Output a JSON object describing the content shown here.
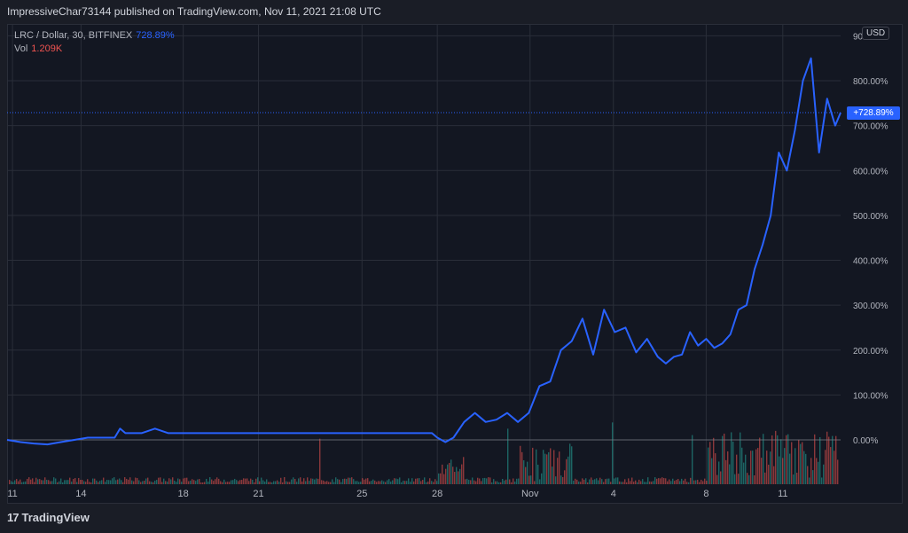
{
  "header": {
    "published": "ImpressiveChar73144 published on TradingView.com, Nov 11, 2021 21:08 UTC"
  },
  "legend": {
    "symbol": "LRC / Dollar, 30, BITFINEX",
    "value": "728.89%",
    "vol_label": "Vol",
    "vol_value": "1.209K"
  },
  "currency_button": "USD",
  "price_tag": "+728.89%",
  "brand": {
    "logo": "17",
    "name": "TradingView"
  },
  "colors": {
    "line": "#2962ff",
    "vol_up": "#26a69a",
    "vol_down": "#ef5350",
    "bg": "#131722",
    "grid": "#2a2e39"
  },
  "chart_data": {
    "type": "line",
    "title": "LRC / Dollar, 30, BITFINEX",
    "y_unit": "%",
    "ylim": [
      -40,
      900
    ],
    "yticks": [
      "0.00%",
      "100.00%",
      "200.00%",
      "300.00%",
      "400.00%",
      "500.00%",
      "600.00%",
      "700.00%",
      "800.00%",
      "90"
    ],
    "xticks": [
      "11",
      "14",
      "18",
      "21",
      "25",
      "28",
      "Nov",
      "4",
      "8",
      "11"
    ],
    "grid": true,
    "last_value": 728.89,
    "series": [
      {
        "x": [
          0,
          0.5,
          1,
          1.5,
          2,
          2.5,
          3,
          3.5,
          4,
          4.2,
          4.4,
          5,
          5.5,
          6,
          6.5,
          7,
          7.5,
          8,
          9,
          10,
          11,
          12,
          13,
          14,
          15,
          15.8,
          16.0,
          16.3,
          16.6,
          17.0,
          17.4,
          17.8,
          18.2,
          18.6,
          19.0,
          19.4,
          19.8,
          20.2,
          20.6,
          21.0,
          21.4,
          21.8,
          22.2,
          22.6,
          23.0,
          23.4,
          23.8,
          24.2,
          24.5,
          24.8,
          25.1,
          25.4,
          25.7,
          26.0,
          26.3,
          26.6,
          26.9,
          27.2,
          27.5,
          27.8,
          28.1,
          28.4,
          28.7,
          29.0,
          29.3,
          29.6,
          29.9,
          30.2,
          30.5,
          30.8,
          31.0
        ],
        "y": [
          0,
          -5,
          -8,
          -10,
          -5,
          0,
          5,
          5,
          5,
          25,
          15,
          15,
          25,
          15,
          15,
          15,
          15,
          15,
          15,
          15,
          15,
          15,
          15,
          15,
          15,
          15,
          5,
          -5,
          5,
          40,
          60,
          40,
          45,
          60,
          40,
          60,
          120,
          130,
          200,
          220,
          270,
          190,
          290,
          240,
          250,
          195,
          225,
          185,
          170,
          185,
          190,
          240,
          210,
          225,
          205,
          215,
          235,
          290,
          300,
          380,
          435,
          500,
          640,
          600,
          690,
          800,
          850,
          640,
          760,
          700,
          728.89
        ]
      }
    ]
  }
}
